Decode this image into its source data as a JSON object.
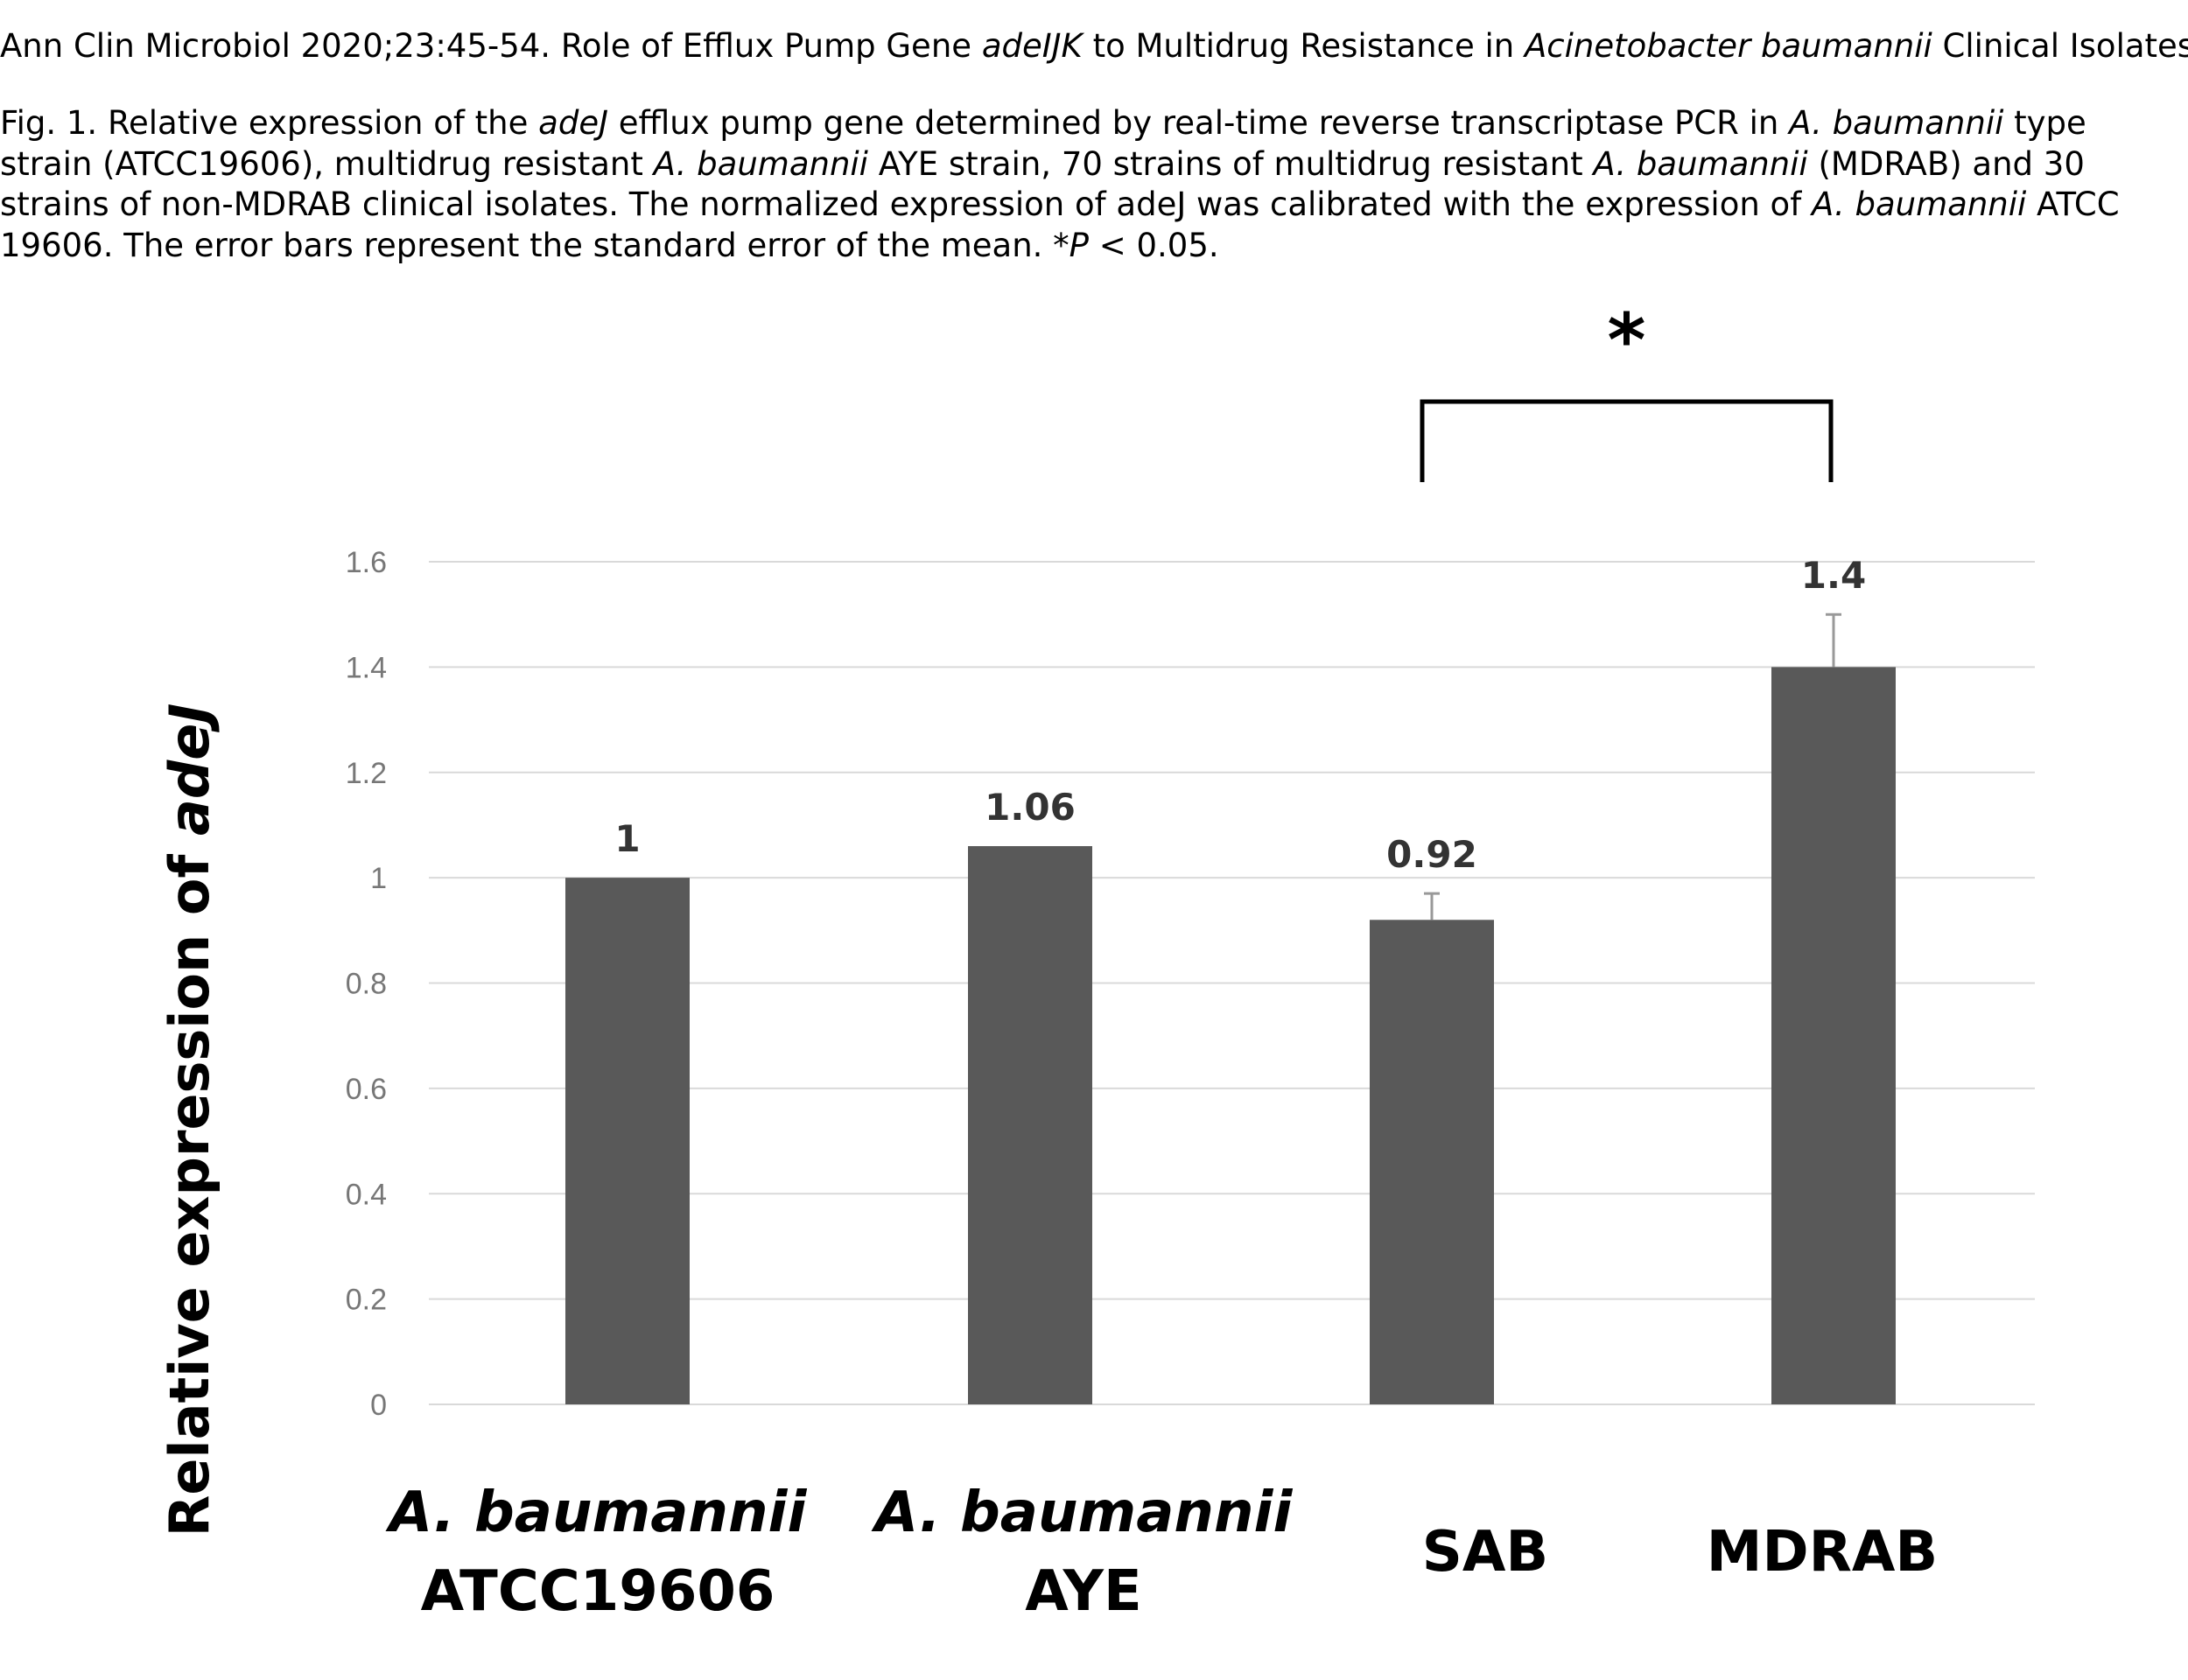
{
  "header": {
    "citation_pre": "Ann Clin Microbiol 2020;23:45-54. Role of Efflux Pump Gene ",
    "citation_gene": "adeIJK",
    "citation_mid": " to Multidrug Resistance in ",
    "citation_species": "Acinetobacter baumannii",
    "citation_post": " Clinical Isolates"
  },
  "caption": {
    "p1": "Fig. 1. Relative expression of the ",
    "g1": "adeJ",
    "p2": " efflux pump gene determined by real-time reverse transcriptase PCR in ",
    "s1": "A. baumannii",
    "p3": " type strain (ATCC19606), multidrug resistant ",
    "s2": "A. baumannii",
    "p4": " AYE strain, 70 strains of multidrug resistant ",
    "s3": "A. baumannii",
    "p5": " (MDRAB) and 30 strains of non-MDRAB clinical isolates. The normalized expression of adeJ was calibrated with the expression of ",
    "s4": "A. baumannii",
    "p6": " ATCC 19606. The error bars represent the standard error of the mean. *",
    "pv": "P",
    "p7": " < 0.05."
  },
  "chart_data": {
    "type": "bar",
    "categories": [
      [
        "A. baumannii",
        "ATCC19606"
      ],
      [
        "A. baumannii",
        "AYE"
      ],
      [
        "SAB"
      ],
      [
        "MDRAB"
      ]
    ],
    "category_italic_first_line": [
      true,
      true,
      false,
      false
    ],
    "values": [
      1,
      1.06,
      0.92,
      1.4
    ],
    "data_labels": [
      "1",
      "1.06",
      "0.92",
      "1.4"
    ],
    "error_upper": [
      0,
      0,
      0.05,
      0.1
    ],
    "ylabel_prefix": "Relative expression of ",
    "ylabel_gene": "adeJ",
    "ylim": [
      0,
      1.6
    ],
    "yticks": [
      0,
      0.2,
      0.4,
      0.6,
      0.8,
      1,
      1.2,
      1.4,
      1.6
    ],
    "ytick_labels": [
      "0",
      "0.2",
      "0.4",
      "0.6",
      "0.8",
      "1",
      "1.2",
      "1.4",
      "1.6"
    ],
    "grid": true,
    "bar_color": "#595959",
    "significance": {
      "between": [
        2,
        3
      ],
      "label": "*"
    }
  }
}
